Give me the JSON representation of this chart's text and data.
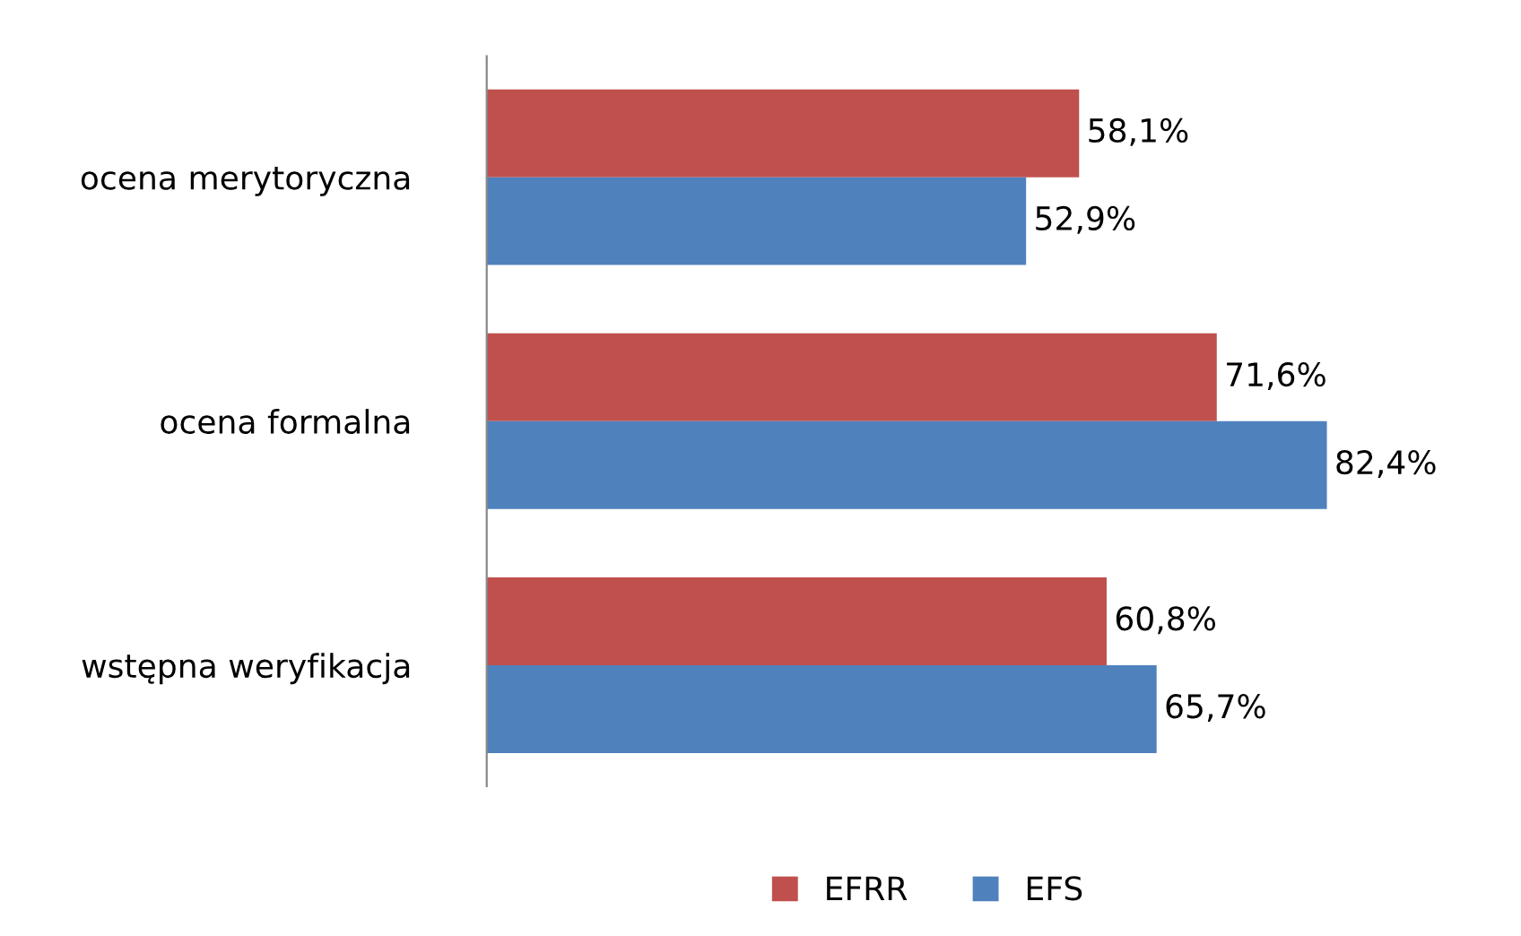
{
  "chart_data": {
    "type": "bar",
    "orientation": "horizontal",
    "categories": [
      "ocena merytoryczna",
      "ocena formalna",
      "wstępna weryfikacja"
    ],
    "series": [
      {
        "name": "EFRR",
        "color": "#c0504d",
        "values": [
          58.1,
          71.6,
          60.8
        ],
        "value_labels": [
          "58,1%",
          "71,6%",
          "60,8%"
        ]
      },
      {
        "name": "EFS",
        "color": "#4f81bd",
        "values": [
          52.9,
          82.4,
          65.7
        ],
        "value_labels": [
          "52,9%",
          "82,4%",
          "65,7%"
        ]
      }
    ],
    "legend": "bottom",
    "grid": false
  }
}
